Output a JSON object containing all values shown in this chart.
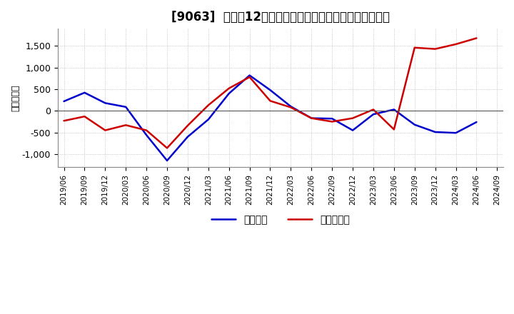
{
  "title": "[9063]  利益の12か月移動合計の対前年同期増減額の推移",
  "ylabel": "（百万円）",
  "dates": [
    "2019/06",
    "2019/09",
    "2019/12",
    "2020/03",
    "2020/06",
    "2020/09",
    "2020/12",
    "2021/03",
    "2021/06",
    "2021/09",
    "2021/12",
    "2022/03",
    "2022/06",
    "2022/09",
    "2022/12",
    "2023/03",
    "2023/06",
    "2023/09",
    "2023/12",
    "2024/03",
    "2024/06",
    "2024/09"
  ],
  "keijo_rieki": [
    220,
    420,
    180,
    90,
    -560,
    -1150,
    -600,
    -200,
    400,
    820,
    480,
    100,
    -170,
    -180,
    -450,
    -80,
    30,
    -320,
    -490,
    -510,
    -260,
    null
  ],
  "touki_junrieki": [
    -230,
    -130,
    -450,
    -330,
    -450,
    -860,
    -340,
    130,
    520,
    780,
    230,
    80,
    -170,
    -250,
    -170,
    30,
    -430,
    1460,
    1430,
    1540,
    1680,
    null
  ],
  "ylim": [
    -1300,
    1900
  ],
  "yticks": [
    -1000,
    -500,
    0,
    500,
    1000,
    1500
  ],
  "ytick_labels": [
    "-1,000",
    "-500",
    "0",
    "500",
    "1,000",
    "1,500"
  ],
  "line_color_keijo": "#0000cc",
  "line_color_touki": "#cc0000",
  "bg_color": "#ffffff",
  "grid_color": "#aaaaaa",
  "legend_keijo": "経常利益",
  "legend_touki": "当期純利益",
  "title_fontsize": 12,
  "axis_fontsize": 9
}
